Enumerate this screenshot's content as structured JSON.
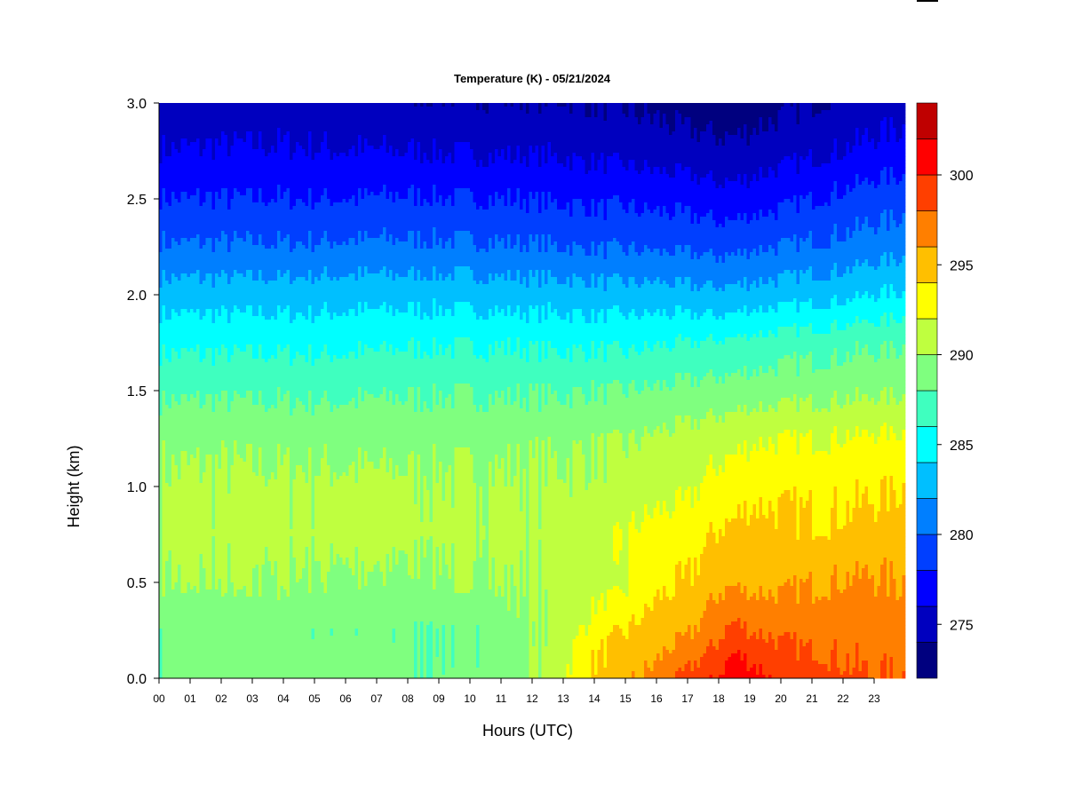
{
  "chart_data": {
    "type": "heatmap",
    "title": "Temperature (K) - 05/21/2024",
    "xlabel": "Hours (UTC)",
    "ylabel": "Height (km)",
    "xlim": [
      0,
      24
    ],
    "ylim": [
      0,
      3.0
    ],
    "x_ticks": [
      "00",
      "01",
      "02",
      "03",
      "04",
      "05",
      "06",
      "07",
      "08",
      "09",
      "10",
      "11",
      "12",
      "13",
      "14",
      "15",
      "16",
      "17",
      "18",
      "19",
      "20",
      "21",
      "22",
      "23"
    ],
    "y_ticks": [
      "0.0",
      "0.5",
      "1.0",
      "1.5",
      "2.0",
      "2.5",
      "3.0"
    ],
    "grid": false,
    "colorbar": {
      "position": "right",
      "levels": [
        272,
        274,
        276,
        278,
        280,
        282,
        284,
        286,
        288,
        290,
        292,
        294,
        296,
        298,
        300,
        302,
        304
      ],
      "colors": [
        "#00007f",
        "#0000bf",
        "#0000ff",
        "#003fff",
        "#007fff",
        "#00bfff",
        "#00ffff",
        "#3fffbf",
        "#7fff7f",
        "#bfff3f",
        "#ffff00",
        "#ffbf00",
        "#ff7f00",
        "#ff3f00",
        "#ff0000",
        "#bf0000",
        "#7f0000"
      ],
      "tick_labels": [
        "275",
        "280",
        "285",
        "290",
        "295",
        "300"
      ]
    },
    "times_utc": [
      0,
      2,
      4,
      6,
      8,
      10,
      11.5,
      13,
      14,
      15,
      16,
      17,
      18,
      18.5,
      19,
      20,
      21,
      22,
      23,
      24
    ],
    "heights_km": [
      0.0,
      0.25,
      0.5,
      0.75,
      1.0,
      1.25,
      1.5,
      1.75,
      2.0,
      2.25,
      2.5,
      2.75,
      3.0
    ],
    "temperature_k": [
      [
        288.5,
        288.5,
        288.8,
        289.0,
        288.3,
        288.5,
        289.0,
        292.0,
        294.5,
        295.5,
        296.5,
        298.5,
        300.0,
        301.8,
        301.0,
        299.5,
        299.2,
        298.5,
        298.0,
        298.0
      ],
      [
        288.5,
        288.6,
        288.6,
        288.2,
        288.2,
        288.2,
        289.3,
        290.5,
        293.0,
        294.0,
        295.0,
        295.6,
        297.5,
        298.5,
        298.0,
        297.5,
        297.2,
        297.3,
        297.0,
        297.0
      ],
      [
        290.0,
        290.0,
        290.0,
        289.8,
        289.5,
        290.0,
        290.2,
        290.5,
        291.0,
        291.5,
        293.5,
        294.0,
        295.5,
        295.8,
        295.5,
        295.5,
        296.0,
        296.2,
        296.3,
        296.0
      ],
      [
        290.5,
        290.5,
        290.5,
        290.5,
        290.5,
        290.5,
        290.5,
        290.6,
        291.0,
        292.0,
        292.8,
        293.0,
        294.2,
        294.5,
        294.8,
        294.5,
        294.3,
        294.5,
        294.7,
        295.0
      ],
      [
        290.3,
        290.4,
        290.4,
        290.4,
        290.4,
        290.3,
        290.3,
        290.4,
        290.5,
        290.7,
        291.2,
        291.5,
        292.8,
        293.0,
        293.5,
        293.5,
        293.5,
        293.5,
        293.8,
        294.0
      ],
      [
        289.5,
        289.5,
        289.4,
        289.4,
        289.3,
        289.4,
        289.5,
        289.6,
        289.8,
        289.9,
        290.3,
        290.6,
        291.2,
        291.5,
        291.8,
        292.0,
        292.0,
        292.2,
        292.3,
        292.3
      ],
      [
        287.6,
        287.6,
        287.6,
        287.6,
        287.8,
        287.8,
        287.8,
        287.8,
        288.0,
        288.0,
        288.2,
        288.5,
        288.7,
        288.8,
        289.0,
        289.1,
        289.3,
        289.5,
        289.6,
        289.7
      ],
      [
        285.5,
        285.5,
        285.5,
        285.5,
        285.8,
        285.8,
        285.8,
        285.6,
        285.6,
        285.5,
        285.8,
        286.0,
        286.2,
        286.4,
        286.6,
        286.9,
        287.2,
        287.4,
        287.6,
        287.8
      ],
      [
        283.0,
        283.0,
        283.0,
        283.2,
        283.2,
        283.2,
        283.0,
        283.0,
        282.8,
        282.8,
        282.8,
        282.6,
        282.5,
        282.6,
        282.8,
        283.0,
        283.3,
        283.6,
        284.0,
        284.2
      ],
      [
        280.2,
        280.2,
        280.2,
        280.3,
        280.4,
        280.3,
        280.2,
        280.0,
        279.8,
        279.8,
        279.7,
        279.6,
        279.4,
        279.5,
        279.8,
        280.0,
        280.3,
        280.6,
        281.0,
        281.3
      ],
      [
        278.0,
        278.0,
        278.0,
        278.0,
        278.2,
        278.0,
        278.0,
        277.8,
        277.6,
        277.6,
        277.4,
        277.2,
        276.8,
        276.8,
        277.0,
        277.5,
        278.0,
        278.5,
        279.0,
        279.2
      ],
      [
        276.0,
        276.2,
        276.2,
        276.0,
        276.0,
        275.8,
        275.8,
        275.7,
        275.5,
        275.3,
        275.0,
        274.8,
        274.5,
        274.5,
        274.8,
        275.2,
        275.6,
        276.0,
        276.5,
        276.8
      ],
      [
        274.5,
        274.5,
        274.8,
        274.6,
        274.3,
        274.3,
        274.2,
        274.2,
        274.0,
        273.8,
        273.5,
        273.0,
        272.8,
        272.8,
        273.0,
        273.5,
        274.0,
        274.5,
        275.0,
        275.2
      ]
    ]
  }
}
